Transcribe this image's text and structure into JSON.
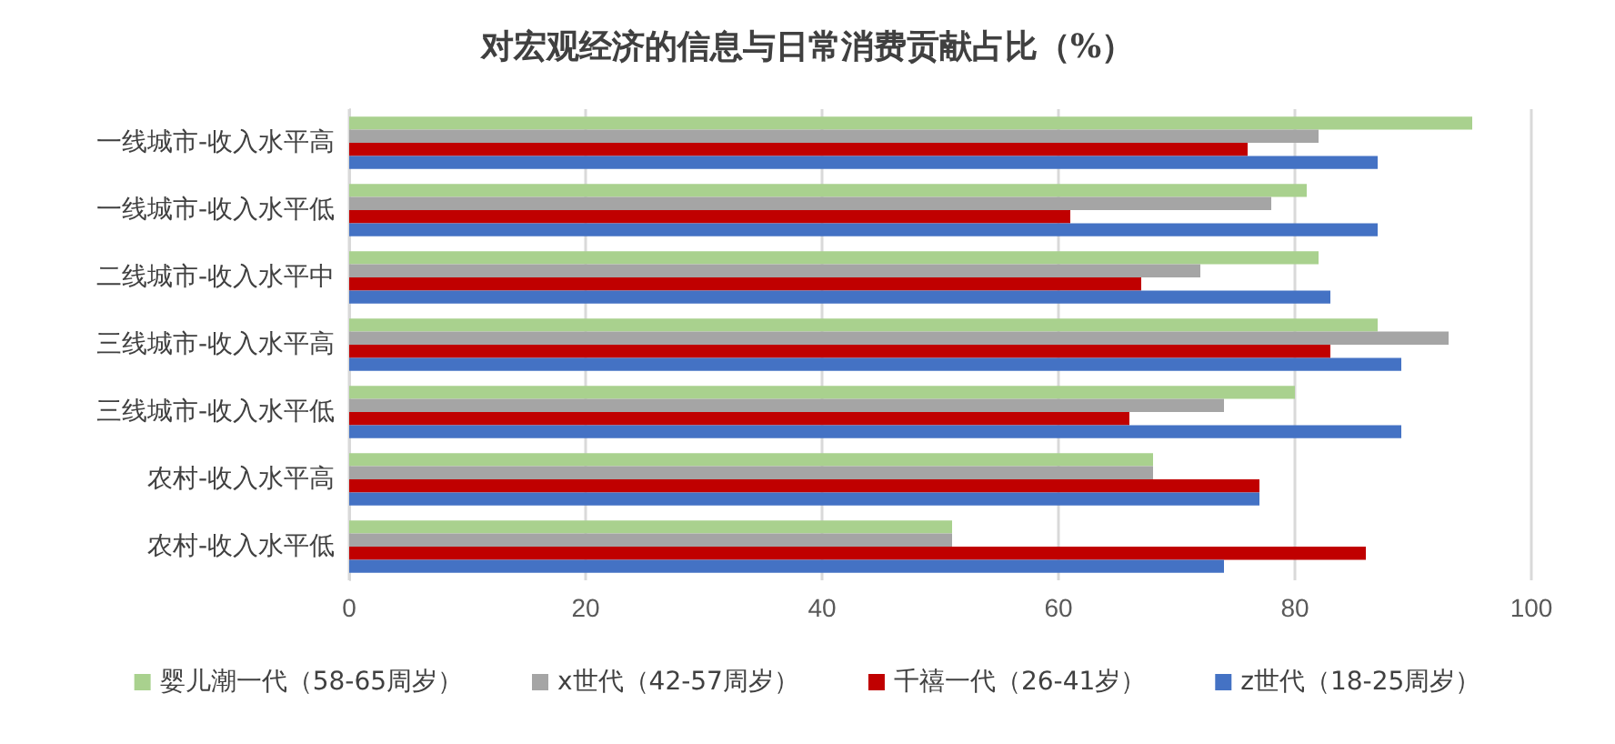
{
  "chart_data": {
    "type": "bar",
    "orientation": "horizontal",
    "title": "对宏观经济的信息与日常消费贡献占比（%）",
    "categories": [
      "一线城市-收入水平高",
      "一线城市-收入水平低",
      "二线城市-收入水平中",
      "三线城市-收入水平高",
      "三线城市-收入水平低",
      "农村-收入水平高",
      "农村-收入水平低"
    ],
    "series": [
      {
        "name": "婴儿潮一代（58-65周岁）",
        "color": "#a9d18e",
        "values": [
          95,
          81,
          82,
          87,
          80,
          68,
          51
        ]
      },
      {
        "name": "x世代（42-57周岁）",
        "color": "#a5a5a5",
        "values": [
          82,
          78,
          72,
          93,
          74,
          68,
          51
        ]
      },
      {
        "name": "千禧一代（26-41岁）",
        "color": "#c00000",
        "values": [
          76,
          61,
          67,
          83,
          66,
          77,
          86
        ]
      },
      {
        "name": "z世代（18-25周岁）",
        "color": "#4472c4",
        "values": [
          87,
          87,
          83,
          89,
          89,
          77,
          74
        ]
      }
    ],
    "xlim": [
      0,
      100
    ],
    "xticks": [
      0,
      20,
      40,
      60,
      80,
      100
    ],
    "grid": "x",
    "legend": "bottom"
  }
}
